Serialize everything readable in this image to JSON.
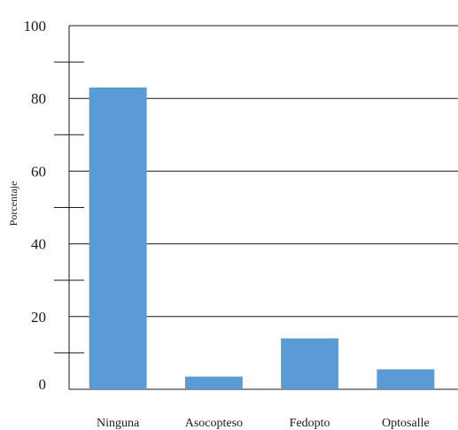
{
  "chart_data": {
    "type": "bar",
    "title": "",
    "xlabel": "",
    "ylabel": "Porcentaje",
    "categories": [
      "Ninguna",
      "Asocopteso",
      "Fedopto",
      "Optosalle"
    ],
    "values": [
      83,
      3.5,
      14,
      5.5
    ],
    "ylim": [
      0,
      100
    ],
    "yticks": [
      0,
      20,
      40,
      60,
      80,
      100
    ],
    "grid": true,
    "legend": "none",
    "bar_color": "#5b9bd5"
  }
}
